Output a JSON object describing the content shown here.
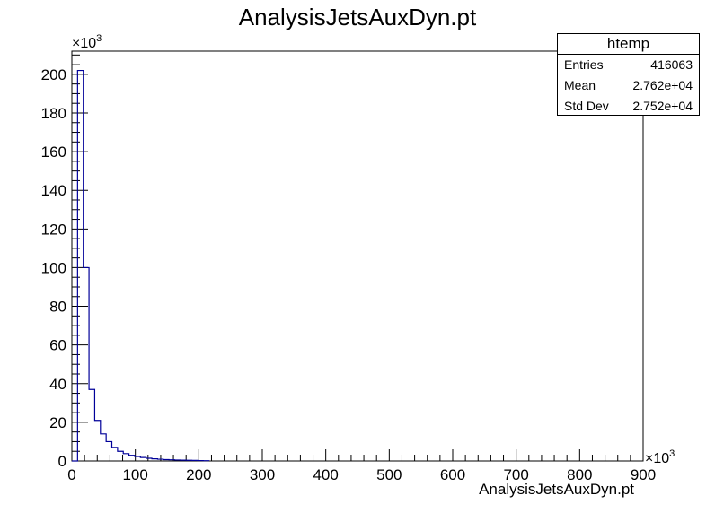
{
  "chart_data": {
    "type": "histogram",
    "title": "AnalysisJetsAuxDyn.pt",
    "xlabel": "AnalysisJetsAuxDyn.pt",
    "ylabel": "",
    "x_multiplier": "×10",
    "x_multiplier_exp": "3",
    "y_multiplier": "×10",
    "y_multiplier_exp": "3",
    "xlim": [
      0,
      900
    ],
    "ylim": [
      0,
      212
    ],
    "bin_width": 9,
    "x_ticks": [
      0,
      100,
      200,
      300,
      400,
      500,
      600,
      700,
      800,
      900
    ],
    "y_ticks": [
      0,
      20,
      40,
      60,
      80,
      100,
      120,
      140,
      160,
      180,
      200
    ],
    "bins": [
      {
        "x0": 0,
        "x1": 9,
        "y": 0
      },
      {
        "x0": 9,
        "x1": 18,
        "y": 202
      },
      {
        "x0": 18,
        "x1": 27,
        "y": 100
      },
      {
        "x0": 27,
        "x1": 36,
        "y": 37
      },
      {
        "x0": 36,
        "x1": 45,
        "y": 21
      },
      {
        "x0": 45,
        "x1": 54,
        "y": 14
      },
      {
        "x0": 54,
        "x1": 63,
        "y": 10
      },
      {
        "x0": 63,
        "x1": 72,
        "y": 7
      },
      {
        "x0": 72,
        "x1": 81,
        "y": 5
      },
      {
        "x0": 81,
        "x1": 90,
        "y": 3.8
      },
      {
        "x0": 90,
        "x1": 99,
        "y": 2.9
      },
      {
        "x0": 99,
        "x1": 108,
        "y": 2.3
      },
      {
        "x0": 108,
        "x1": 117,
        "y": 1.8
      },
      {
        "x0": 117,
        "x1": 126,
        "y": 1.4
      },
      {
        "x0": 126,
        "x1": 135,
        "y": 1.1
      },
      {
        "x0": 135,
        "x1": 144,
        "y": 0.9
      },
      {
        "x0": 144,
        "x1": 153,
        "y": 0.7
      },
      {
        "x0": 153,
        "x1": 162,
        "y": 0.6
      },
      {
        "x0": 162,
        "x1": 171,
        "y": 0.5
      },
      {
        "x0": 171,
        "x1": 180,
        "y": 0.4
      },
      {
        "x0": 180,
        "x1": 189,
        "y": 0.35
      },
      {
        "x0": 189,
        "x1": 198,
        "y": 0.3
      },
      {
        "x0": 198,
        "x1": 207,
        "y": 0.2
      },
      {
        "x0": 207,
        "x1": 216,
        "y": 0.15
      }
    ],
    "grid": false,
    "legend_placement": "top-right"
  },
  "stats_box": {
    "title": "htemp",
    "rows": [
      {
        "label": "Entries",
        "value": "416063"
      },
      {
        "label": "Mean",
        "value": "2.762e+04"
      },
      {
        "label": "Std Dev",
        "value": "2.752e+04"
      }
    ]
  },
  "colors": {
    "histogram_line": "#000099",
    "axis": "#000000"
  }
}
